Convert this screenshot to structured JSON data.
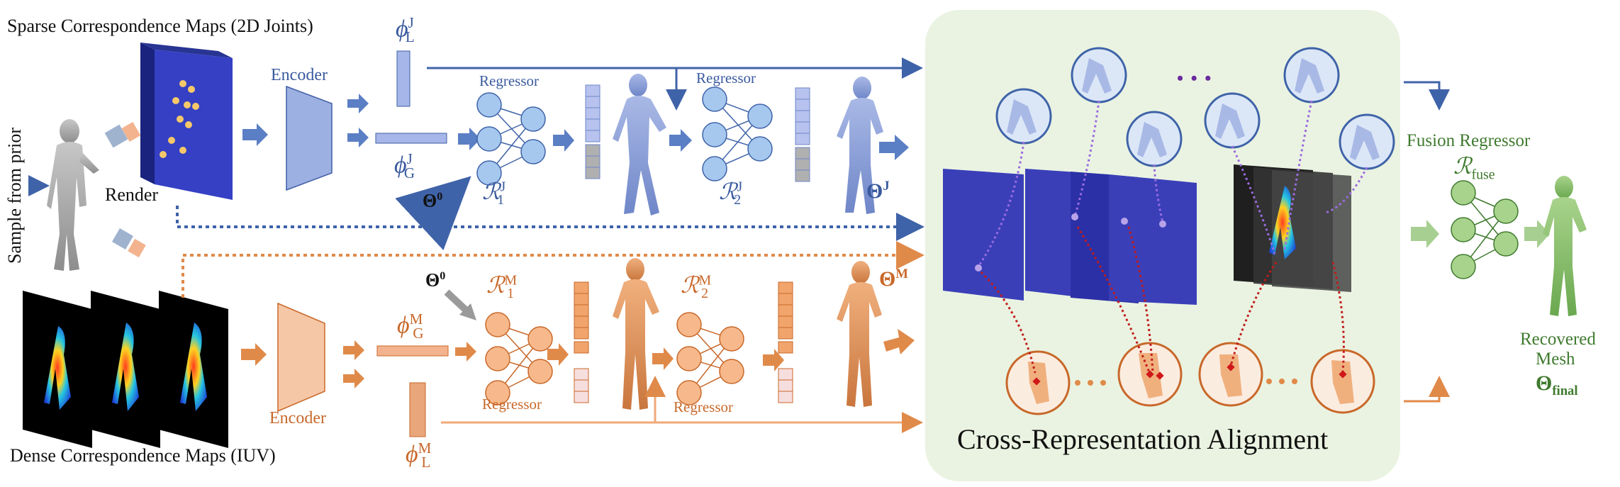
{
  "labels": {
    "sparse_maps": "Sparse Correspondence Maps (2D Joints)",
    "dense_maps": "Dense Correspondence Maps (IUV)",
    "sample_prior": "Sample from prior",
    "render": "Render",
    "encoder_top": "Encoder",
    "encoder_bottom": "Encoder",
    "regressor_top_1": "Regressor",
    "regressor_top_2": "Regressor",
    "regressor_bottom_1": "Regressor",
    "regressor_bottom_2": "Regressor",
    "fusion_regressor": "Fusion Regressor",
    "recovered_mesh_1": "Recovered",
    "recovered_mesh_2": "Mesh",
    "cross_alignment": "Cross-Representation Alignment",
    "ellipsis": "• • •"
  },
  "math": {
    "phi": "ϕ",
    "theta": "Θ",
    "R": "ℛ",
    "sub_L": "L",
    "sub_G": "G",
    "sup_J": "J",
    "sup_M": "M",
    "sup_0": "0",
    "sub_1": "1",
    "sub_2": "2",
    "sub_fuse": "fuse",
    "sub_final": "final"
  },
  "colors": {
    "joint_branch": "#3a5a9e",
    "mesh_branch": "#c8682a",
    "fusion_branch": "#3f7a2e",
    "alignment_panel": "#eaf3e1"
  }
}
